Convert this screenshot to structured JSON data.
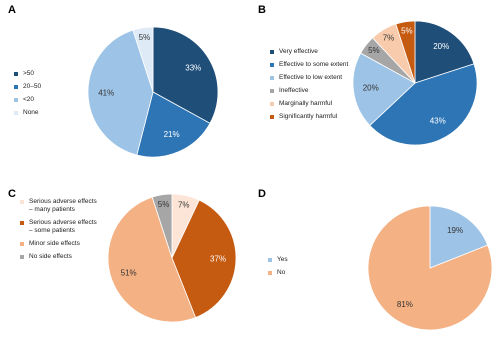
{
  "chart_data": [
    {
      "type": "pie",
      "panel": "A",
      "categories": [
        ">50",
        "20–50",
        "<20",
        "None"
      ],
      "values": [
        33,
        21,
        41,
        5
      ],
      "value_labels": [
        "33%",
        "21%",
        "41%",
        "5%"
      ],
      "colors": [
        "#1f4e79",
        "#2e75b6",
        "#9dc3e6",
        "#deebf7"
      ],
      "legend": "left"
    },
    {
      "type": "pie",
      "panel": "B",
      "categories": [
        "Very effective",
        "Effective to some extent",
        "Effective to low extent",
        "Ineffective",
        "Marginally harmful",
        "Significantly harmful"
      ],
      "values": [
        20,
        43,
        20,
        5,
        7,
        5
      ],
      "value_labels": [
        "20%",
        "43%",
        "20%",
        "5%",
        "7%",
        "5%"
      ],
      "colors": [
        "#1f4e79",
        "#2e75b6",
        "#9dc3e6",
        "#a6a6a6",
        "#f8cbad",
        "#c55a11"
      ],
      "legend": "left"
    },
    {
      "type": "pie",
      "panel": "C",
      "categories": [
        "Serious adverse effects – many patients",
        "Serious adverse effects – some patients",
        "Minor side effects",
        "No side effects"
      ],
      "values": [
        7,
        37,
        51,
        5
      ],
      "value_labels": [
        "7%",
        "37%",
        "51%",
        "5%"
      ],
      "colors": [
        "#fce4d6",
        "#c55a11",
        "#f4b183",
        "#a6a6a6"
      ],
      "legend": "left"
    },
    {
      "type": "pie",
      "panel": "D",
      "categories": [
        "Yes",
        "No"
      ],
      "values": [
        19,
        81
      ],
      "value_labels": [
        "19%",
        "81%"
      ],
      "colors": [
        "#9dc3e6",
        "#f4b183"
      ],
      "legend": "left"
    }
  ]
}
